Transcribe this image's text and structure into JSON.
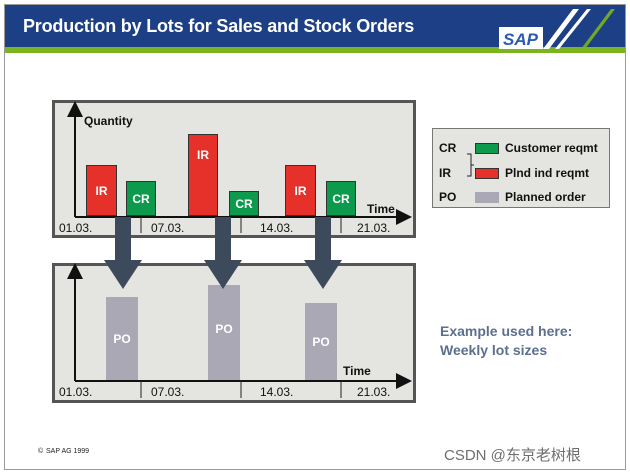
{
  "header": {
    "title": "Production by Lots for Sales and Stock Orders",
    "logo_text": "SAP"
  },
  "top_chart": {
    "y_label": "Quantity",
    "x_label": "Time",
    "dates": [
      "01.03.",
      "07.03.",
      "14.03.",
      "21.03."
    ],
    "bars": [
      {
        "type": "IR",
        "label": "IR"
      },
      {
        "type": "CR",
        "label": "CR"
      },
      {
        "type": "IR",
        "label": "IR"
      },
      {
        "type": "CR",
        "label": "CR"
      },
      {
        "type": "IR",
        "label": "IR"
      },
      {
        "type": "CR",
        "label": "CR"
      }
    ]
  },
  "bottom_chart": {
    "x_label": "Time",
    "dates": [
      "01.03.",
      "07.03.",
      "14.03.",
      "21.03."
    ],
    "bars": [
      {
        "type": "PO",
        "label": "PO"
      },
      {
        "type": "PO",
        "label": "PO"
      },
      {
        "type": "PO",
        "label": "PO"
      }
    ]
  },
  "legend": [
    {
      "code": "CR",
      "text": "Customer reqmt",
      "color": "#0e9a4c"
    },
    {
      "code": "IR",
      "text": "Plnd ind reqmt",
      "color": "#e5312a"
    },
    {
      "code": "PO",
      "text": "Planned order",
      "color": "#a9a8b4"
    }
  ],
  "note": {
    "line1": "Example used here:",
    "line2": "Weekly lot sizes"
  },
  "footer": {
    "copyright": "SAP AG 1999"
  },
  "watermark": "CSDN @东京老树根"
}
